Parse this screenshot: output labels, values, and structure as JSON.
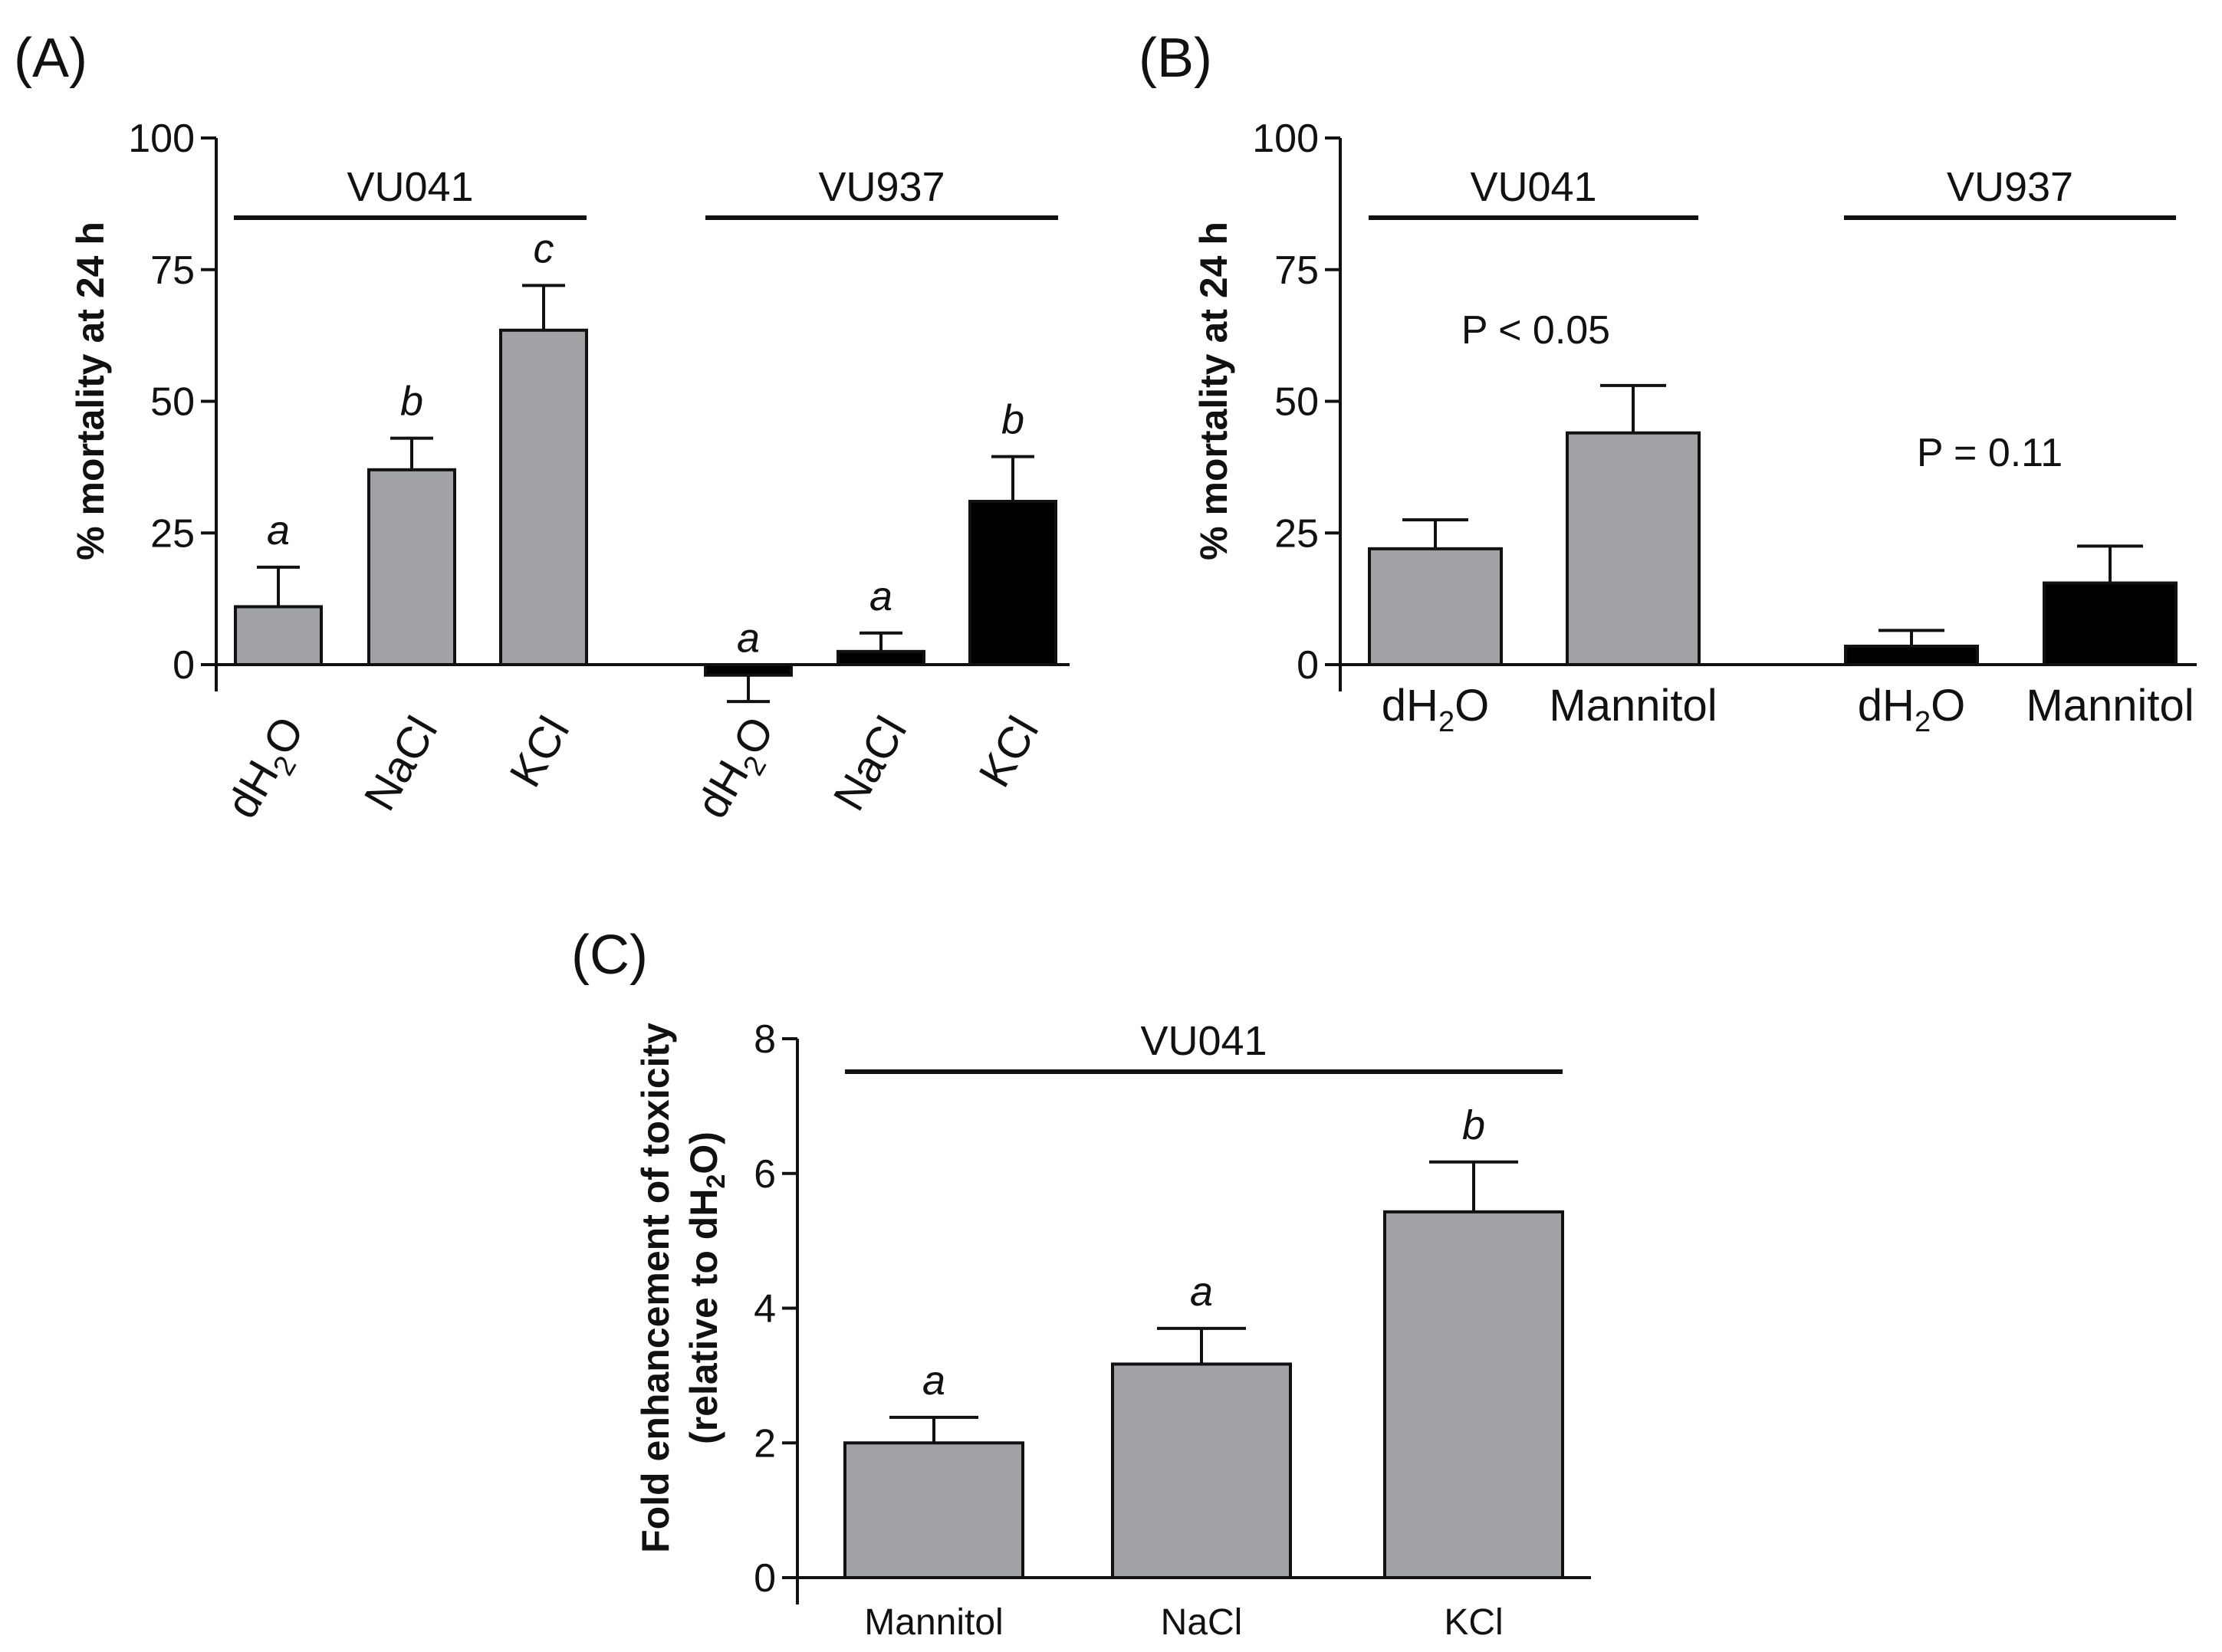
{
  "colors": {
    "gray": "#a0a2a6",
    "black": "#000000",
    "axis": "#111111"
  },
  "chart_data": [
    {
      "panel": "(A)",
      "type": "bar",
      "ylabel": "% mortality at 24 h",
      "ylim": [
        0,
        100
      ],
      "yticks": [
        "0",
        "25",
        "50",
        "75",
        "100"
      ],
      "groups": [
        {
          "name": "VU041",
          "bars": [
            {
              "label": "dH2O",
              "value": 11,
              "error": 7.5,
              "sig": "a",
              "color": "gray"
            },
            {
              "label": "NaCl",
              "value": 37,
              "error": 6,
              "sig": "b",
              "color": "gray"
            },
            {
              "label": "KCl",
              "value": 63.5,
              "error": 8.5,
              "sig": "c",
              "color": "gray"
            }
          ]
        },
        {
          "name": "VU937",
          "bars": [
            {
              "label": "dH2O",
              "value": -2,
              "error": 5,
              "sig": "a",
              "color": "black"
            },
            {
              "label": "NaCl",
              "value": 2.5,
              "error": 3.5,
              "sig": "a",
              "color": "black"
            },
            {
              "label": "KCl",
              "value": 31,
              "error": 8.5,
              "sig": "b",
              "color": "black"
            }
          ]
        }
      ]
    },
    {
      "panel": "(B)",
      "type": "bar",
      "ylabel": "% mortality at 24 h",
      "ylim": [
        0,
        100
      ],
      "yticks": [
        "0",
        "25",
        "50",
        "75",
        "100"
      ],
      "groups": [
        {
          "name": "VU041",
          "pvalue": "P < 0.05",
          "bars": [
            {
              "label": "dH2O",
              "value": 22,
              "error": 5.5,
              "color": "gray"
            },
            {
              "label": "Mannitol",
              "value": 44,
              "error": 9,
              "color": "gray"
            }
          ]
        },
        {
          "name": "VU937",
          "pvalue": "P = 0.11",
          "bars": [
            {
              "label": "dH2O",
              "value": 3.5,
              "error": 3,
              "color": "black"
            },
            {
              "label": "Mannitol",
              "value": 15.5,
              "error": 7,
              "color": "black"
            }
          ]
        }
      ]
    },
    {
      "panel": "(C)",
      "type": "bar",
      "ylabel_line1": "Fold enhancement of toxicity",
      "ylabel_line2_prefix": "(relative to dH",
      "ylabel_line2_sub": "2",
      "ylabel_line2_suffix": "O)",
      "ylim": [
        0,
        8
      ],
      "yticks": [
        "0",
        "2",
        "4",
        "6",
        "8"
      ],
      "groups": [
        {
          "name": "VU041",
          "bars": [
            {
              "label": "Mannitol",
              "value": 2.0,
              "error": 0.38,
              "sig": "a",
              "color": "gray"
            },
            {
              "label": "NaCl",
              "value": 3.17,
              "error": 0.53,
              "sig": "a",
              "color": "gray"
            },
            {
              "label": "KCl",
              "value": 5.43,
              "error": 0.74,
              "sig": "b",
              "color": "gray"
            }
          ]
        }
      ]
    }
  ]
}
